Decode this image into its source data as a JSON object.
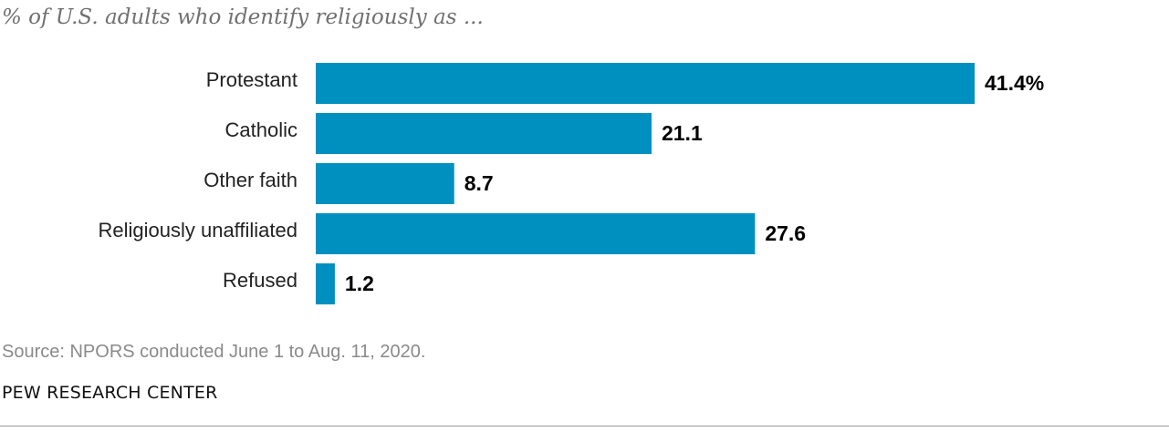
{
  "chart_data": {
    "type": "bar",
    "orientation": "horizontal",
    "subtitle": "% of U.S. adults who identify religiously as ...",
    "categories": [
      "Protestant",
      "Catholic",
      "Other faith",
      "Religiously unaffiliated",
      "Refused"
    ],
    "values": [
      41.4,
      21.1,
      8.7,
      27.6,
      1.2
    ],
    "value_labels": [
      "41.4%",
      "21.1",
      "8.7",
      "27.6",
      "1.2"
    ],
    "bar_color": "#0090c0",
    "xlim": [
      0,
      41.4
    ],
    "grid": false,
    "legend": "none"
  },
  "footer": {
    "source": "Source: NPORS conducted June 1 to Aug. 11, 2020.",
    "brand": "PEW RESEARCH CENTER"
  }
}
